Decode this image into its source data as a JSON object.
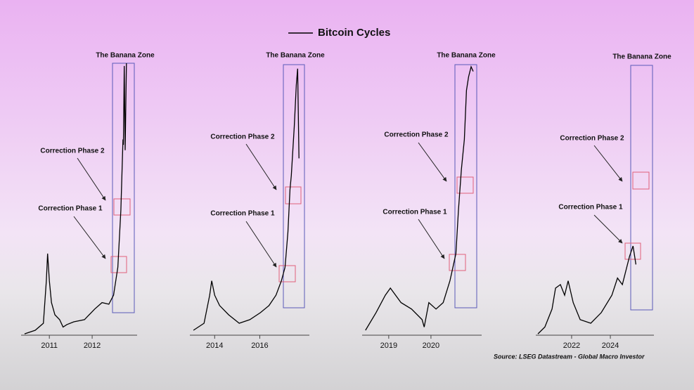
{
  "legend": {
    "name": "Bitcoin Cycles",
    "color": "#000000"
  },
  "source": "Source: LSEG Datastream - Global Macro Investor",
  "chart_data": [
    {
      "type": "line",
      "color": "#000000",
      "annotations": {
        "zone": "The Banana Zone",
        "phase2": "Correction Phase 2",
        "phase1": "Correction Phase 1"
      },
      "x": [
        2010.42,
        2010.67,
        2010.86,
        2010.93,
        2010.96,
        2011.0,
        2011.05,
        2011.13,
        2011.24,
        2011.32,
        2011.41,
        2011.57,
        2011.82,
        2012.06,
        2012.23,
        2012.39,
        2012.5,
        2012.6,
        2012.67,
        2012.72,
        2012.73,
        2012.75,
        2012.77,
        2012.8
      ],
      "values": [
        0.5,
        1.8,
        4.4,
        20,
        30,
        20,
        12,
        7.5,
        5.7,
        3,
        3.9,
        4.9,
        5.7,
        9.6,
        12,
        11.4,
        14.7,
        25,
        46,
        72,
        70,
        99,
        68,
        100
      ],
      "xlim": [
        2010.34,
        2013.05
      ],
      "xticks": [
        2011,
        2012
      ],
      "ylim": [
        0,
        100
      ]
    },
    {
      "type": "line",
      "color": "#000000",
      "annotations": {
        "zone": "The Banana Zone",
        "phase2": "Correction Phase 2",
        "phase1": "Correction Phase 1"
      },
      "x": [
        2013.06,
        2013.53,
        2013.78,
        2013.87,
        2014.0,
        2014.22,
        2014.62,
        2015.09,
        2015.56,
        2016.03,
        2016.41,
        2016.72,
        2016.96,
        2017.12,
        2017.25,
        2017.34,
        2017.4,
        2017.53,
        2017.62,
        2017.68,
        2017.74
      ],
      "values": [
        1.8,
        4.4,
        14.7,
        20,
        14.7,
        10.9,
        7.5,
        4.4,
        5.7,
        8.3,
        10.9,
        14.7,
        20,
        25,
        38,
        53.5,
        58.7,
        76.7,
        92,
        98,
        65
      ],
      "xlim": [
        2012.9,
        2018.2
      ],
      "xticks": [
        2014,
        2016
      ],
      "ylim": [
        0,
        100
      ]
    },
    {
      "type": "line",
      "color": "#000000",
      "annotations": {
        "zone": "The Banana Zone",
        "phase2": "Correction Phase 2",
        "phase1": "Correction Phase 1"
      },
      "x": [
        2018.45,
        2018.7,
        2018.92,
        2019.04,
        2019.29,
        2019.54,
        2019.79,
        2019.84,
        2019.95,
        2020.12,
        2020.29,
        2020.45,
        2020.59,
        2020.65,
        2020.72,
        2020.79,
        2020.84,
        2020.89,
        2020.95,
        2021.0
      ],
      "values": [
        1.8,
        8.3,
        14.7,
        17.3,
        12,
        9.6,
        5.7,
        3,
        12,
        9.6,
        12,
        20,
        30,
        46,
        61,
        72,
        90,
        95,
        98.7,
        97
      ],
      "xlim": [
        2018.37,
        2021.2
      ],
      "xticks": [
        2019,
        2020
      ],
      "ylim": [
        0,
        100
      ]
    },
    {
      "type": "line",
      "color": "#000000",
      "annotations": {
        "zone": "The Banana Zone",
        "phase2": "Correction Phase 2",
        "phase1": "Correction Phase 1"
      },
      "x": [
        2020.26,
        2020.62,
        2020.99,
        2021.17,
        2021.42,
        2021.64,
        2021.82,
        2022.08,
        2022.44,
        2022.99,
        2023.53,
        2024.08,
        2024.37,
        2024.62,
        2024.99,
        2025.17,
        2025.32
      ],
      "values": [
        0.5,
        3,
        9.6,
        17.3,
        18.6,
        14.7,
        20,
        12,
        5.7,
        4.4,
        8.3,
        14.7,
        21,
        18.6,
        29,
        32.8,
        26
      ],
      "xlim": [
        2020.15,
        2026.25
      ],
      "xticks": [
        2022,
        2024
      ],
      "ylim": [
        0,
        100
      ]
    }
  ]
}
